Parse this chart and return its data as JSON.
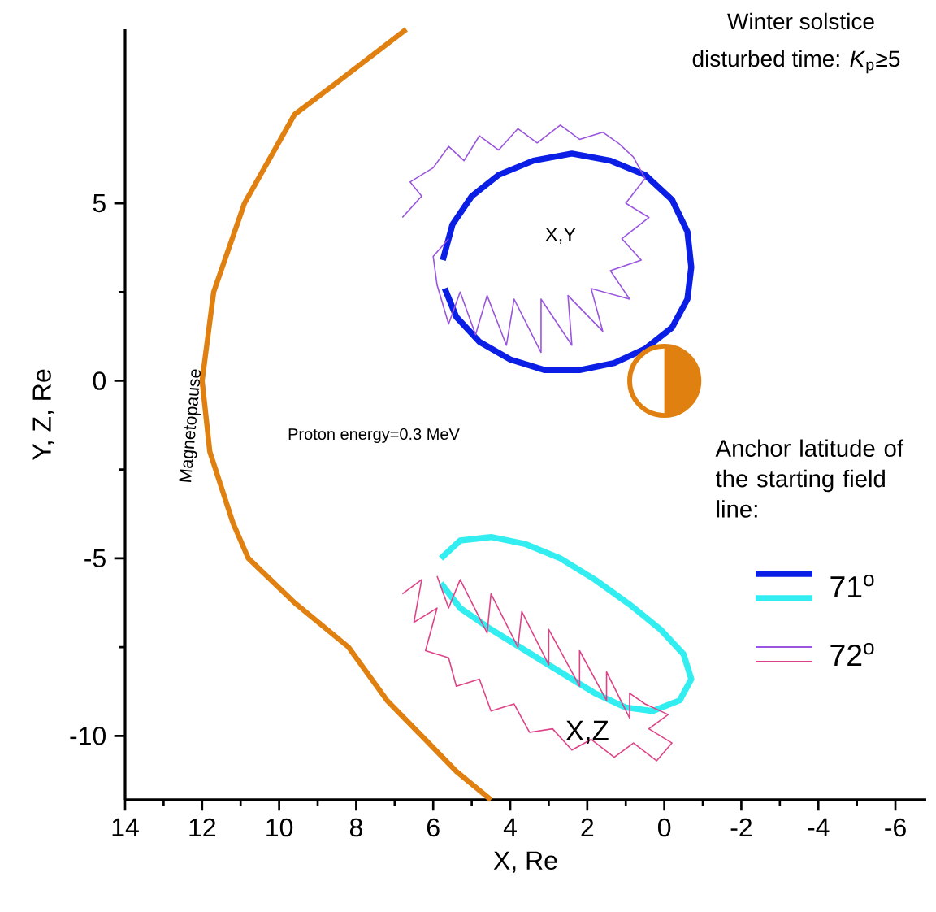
{
  "chart_data": {
    "type": "line",
    "xlabel": "X, Re",
    "ylabel": "Y, Z, Re",
    "legend_title": "Anchor latitude of the starting field line:",
    "legend": "right",
    "marker": "none",
    "grid": false,
    "xlim": [
      14,
      -6.8
    ],
    "ylim": [
      -11.8,
      9.9
    ],
    "xticks": [
      14,
      12,
      10,
      8,
      6,
      4,
      2,
      0,
      -2,
      -4,
      -6
    ],
    "yticks": [
      -10,
      -5,
      0,
      5
    ],
    "annotations": [
      "Winter solstice",
      "disturbed time: *K*$_{p}$≥5",
      "Proton energy=0.3 MeV",
      "X,Y",
      {
        "text": "X,Z",
        "x": 2.0,
        "y": -9.9
      },
      "Magnetopause"
    ],
    "series": [
      {
        "color": "#e08010",
        "x": [
          6.7,
          8.5,
          9.6,
          10.9,
          11.7,
          12.0,
          11.8,
          11.2,
          10.8,
          9.6,
          8.2,
          7.2,
          6.3,
          5.4,
          4.5
        ],
        "values": [
          9.9,
          8.4,
          7.5,
          5.0,
          2.5,
          0,
          -2,
          -4,
          -5,
          -6.25,
          -7.5,
          -9,
          -10,
          -11,
          -11.8
        ]
      },
      {
        "name": "71$^{o}$",
        "color": "#0a1ee6",
        "x": [
          5.75,
          5.5,
          5.0,
          4.3,
          3.4,
          2.4,
          1.4,
          0.5,
          -0.2,
          -0.6,
          -0.7,
          -0.6,
          -0.2,
          0.5,
          1.3,
          2.2,
          3.1,
          4.0,
          4.8,
          5.4,
          5.7
        ],
        "values": [
          3.4,
          4.4,
          5.2,
          5.8,
          6.2,
          6.4,
          6.2,
          5.8,
          5.1,
          4.2,
          3.2,
          2.3,
          1.5,
          0.9,
          0.5,
          0.3,
          0.3,
          0.6,
          1.1,
          1.8,
          2.6
        ]
      },
      {
        "color": "#33eef0",
        "x": [
          5.8,
          5.3,
          4.5,
          3.6,
          2.7,
          1.8,
          0.9,
          0.1,
          -0.5,
          -0.7,
          -0.4,
          0.3,
          1.0,
          1.8,
          2.7,
          3.6,
          4.5,
          5.3,
          5.8
        ],
        "values": [
          -5.0,
          -4.5,
          -4.4,
          -4.6,
          -5.0,
          -5.6,
          -6.3,
          -7.0,
          -7.7,
          -8.4,
          -9.0,
          -9.3,
          -9.2,
          -8.8,
          -8.2,
          -7.6,
          -7.0,
          -6.4,
          -5.7
        ]
      },
      {
        "name": "72$^{o}$",
        "color": "#9955dd",
        "x": [
          6.8,
          6.3,
          6.6,
          6.0,
          5.6,
          5.2,
          4.8,
          4.3,
          3.8,
          3.3,
          2.7,
          2.2,
          1.6,
          1.2,
          0.8,
          0.5,
          1.0,
          0.4,
          1.1,
          0.6,
          1.4,
          0.9,
          1.9,
          1.6,
          2.5,
          2.4,
          3.2,
          3.2,
          3.9,
          4.1,
          4.6,
          4.9,
          5.3,
          5.6,
          5.9,
          6.0,
          5.6
        ],
        "values": [
          4.6,
          5.2,
          5.6,
          6.0,
          6.6,
          6.2,
          6.9,
          6.5,
          7.1,
          6.7,
          7.2,
          6.8,
          7.0,
          6.7,
          6.3,
          5.7,
          5.0,
          4.6,
          4.0,
          3.4,
          3.1,
          2.3,
          2.6,
          1.4,
          2.4,
          1.0,
          2.3,
          0.8,
          2.3,
          1.0,
          2.4,
          1.3,
          2.5,
          1.6,
          2.7,
          3.5,
          4.0
        ]
      },
      {
        "color": "#dd4488",
        "x": [
          6.8,
          6.3,
          6.5,
          5.9,
          6.2,
          5.6,
          5.4,
          4.8,
          4.5,
          3.9,
          3.5,
          2.9,
          2.4,
          1.9,
          1.3,
          0.8,
          0.2,
          -0.2,
          0.4,
          -0.1,
          0.5,
          0.9,
          0.9,
          1.5,
          1.5,
          2.2,
          2.2,
          3.0,
          3.0,
          3.7,
          3.8,
          4.5,
          4.6,
          5.3,
          5.6,
          5.9
        ],
        "values": [
          -6.0,
          -5.6,
          -6.8,
          -6.4,
          -7.6,
          -7.8,
          -8.6,
          -8.4,
          -9.3,
          -9.1,
          -9.9,
          -9.8,
          -10.4,
          -10.1,
          -10.6,
          -10.2,
          -10.7,
          -10.2,
          -9.8,
          -9.4,
          -9.1,
          -8.8,
          -9.5,
          -8.2,
          -9.0,
          -7.6,
          -8.6,
          -7.0,
          -8.0,
          -6.5,
          -7.5,
          -6.0,
          -7.1,
          -5.6,
          -6.4,
          -5.5
        ]
      }
    ]
  }
}
